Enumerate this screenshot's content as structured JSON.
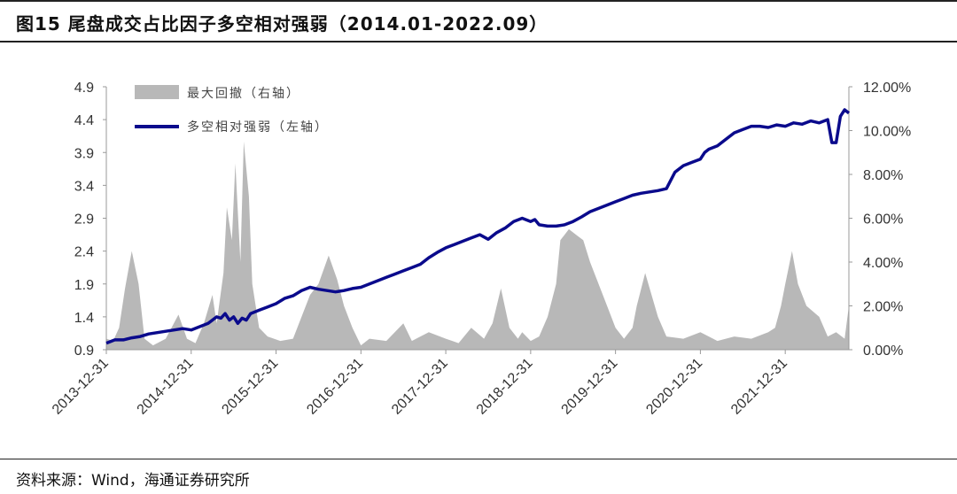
{
  "title": "图15 尾盘成交占比因子多空相对强弱（2014.01-2022.09）",
  "source": "资料来源：Wind，海通证券研究所",
  "chart_data": {
    "type": "line",
    "title": "图15 尾盘成交占比因子多空相对强弱（2014.01-2022.09）",
    "categories": [
      "2013-12-31",
      "2014-12-31",
      "2015-12-31",
      "2016-12-31",
      "2017-12-31",
      "2018-12-31",
      "2019-12-31",
      "2020-12-31",
      "2021-12-31"
    ],
    "left_axis": {
      "ticks": [
        "0.9",
        "1.4",
        "1.9",
        "2.4",
        "2.9",
        "3.4",
        "3.9",
        "4.4",
        "4.9"
      ],
      "ylim": [
        0.9,
        4.9
      ]
    },
    "right_axis": {
      "ticks": [
        "0.00%",
        "2.00%",
        "4.00%",
        "6.00%",
        "8.00%",
        "10.00%",
        "12.00%"
      ],
      "ylim": [
        0,
        12
      ]
    },
    "legend_position": "top-left",
    "series": [
      {
        "name": "最大回撤（右轴）",
        "kind": "area",
        "axis": "right",
        "color": "#b8b8b8",
        "x": [
          2014.0,
          2014.08,
          2014.15,
          2014.22,
          2014.3,
          2014.38,
          2014.45,
          2014.55,
          2014.7,
          2014.85,
          2014.95,
          2015.05,
          2015.15,
          2015.25,
          2015.3,
          2015.38,
          2015.42,
          2015.48,
          2015.52,
          2015.58,
          2015.62,
          2015.68,
          2015.72,
          2015.8,
          2015.9,
          2016.05,
          2016.2,
          2016.3,
          2016.4,
          2016.5,
          2016.62,
          2016.72,
          2016.8,
          2016.9,
          2017.0,
          2017.1,
          2017.3,
          2017.5,
          2017.6,
          2017.8,
          2018.0,
          2018.15,
          2018.3,
          2018.45,
          2018.55,
          2018.65,
          2018.75,
          2018.85,
          2018.9,
          2019.0,
          2019.1,
          2019.2,
          2019.3,
          2019.35,
          2019.45,
          2019.55,
          2019.62,
          2019.7,
          2019.8,
          2019.9,
          2020.0,
          2020.1,
          2020.2,
          2020.25,
          2020.35,
          2020.5,
          2020.6,
          2020.8,
          2021.0,
          2021.2,
          2021.4,
          2021.6,
          2021.8,
          2021.88,
          2021.95,
          2022.0,
          2022.08,
          2022.15,
          2022.25,
          2022.4,
          2022.5,
          2022.6,
          2022.7,
          2022.75
        ],
        "values": [
          0.5,
          0.4,
          1.0,
          2.8,
          4.5,
          3.0,
          0.5,
          0.2,
          0.5,
          1.6,
          0.5,
          0.3,
          1.2,
          2.5,
          1.2,
          3.5,
          6.5,
          5.0,
          8.5,
          4.0,
          9.5,
          7.0,
          3.0,
          1.0,
          0.6,
          0.4,
          0.5,
          1.5,
          2.5,
          3.0,
          4.3,
          3.2,
          2.0,
          1.0,
          0.2,
          0.5,
          0.4,
          1.2,
          0.4,
          0.8,
          0.5,
          0.3,
          1.0,
          0.5,
          1.2,
          2.8,
          1.0,
          0.5,
          0.8,
          0.4,
          0.6,
          1.5,
          3.0,
          5.0,
          5.5,
          5.2,
          5.0,
          4.0,
          3.0,
          2.0,
          1.0,
          0.5,
          1.0,
          2.0,
          3.5,
          1.5,
          0.6,
          0.5,
          0.8,
          0.4,
          0.6,
          0.5,
          0.8,
          1.0,
          2.0,
          3.0,
          4.5,
          3.0,
          2.0,
          1.5,
          0.6,
          0.8,
          0.5,
          2.0
        ]
      },
      {
        "name": "多空相对强弱（左轴）",
        "kind": "line",
        "axis": "left",
        "color": "#0a0a8c",
        "x": [
          2014.0,
          2014.1,
          2014.2,
          2014.3,
          2014.4,
          2014.5,
          2014.6,
          2014.7,
          2014.8,
          2014.9,
          2015.0,
          2015.1,
          2015.2,
          2015.3,
          2015.35,
          2015.4,
          2015.45,
          2015.5,
          2015.55,
          2015.6,
          2015.65,
          2015.7,
          2015.8,
          2015.9,
          2016.0,
          2016.1,
          2016.2,
          2016.3,
          2016.4,
          2016.5,
          2016.6,
          2016.7,
          2016.8,
          2016.9,
          2017.0,
          2017.1,
          2017.2,
          2017.3,
          2017.4,
          2017.5,
          2017.6,
          2017.7,
          2017.8,
          2017.9,
          2018.0,
          2018.1,
          2018.2,
          2018.3,
          2018.4,
          2018.5,
          2018.6,
          2018.7,
          2018.8,
          2018.9,
          2019.0,
          2019.05,
          2019.1,
          2019.2,
          2019.3,
          2019.4,
          2019.5,
          2019.6,
          2019.7,
          2019.8,
          2019.9,
          2020.0,
          2020.1,
          2020.2,
          2020.3,
          2020.4,
          2020.5,
          2020.6,
          2020.7,
          2020.8,
          2020.9,
          2021.0,
          2021.05,
          2021.1,
          2021.2,
          2021.3,
          2021.4,
          2021.5,
          2021.6,
          2021.7,
          2021.8,
          2021.9,
          2022.0,
          2022.1,
          2022.2,
          2022.3,
          2022.4,
          2022.5,
          2022.55,
          2022.6,
          2022.65,
          2022.7,
          2022.75
        ],
        "values": [
          1.0,
          1.05,
          1.05,
          1.08,
          1.1,
          1.14,
          1.16,
          1.18,
          1.2,
          1.22,
          1.2,
          1.25,
          1.3,
          1.4,
          1.38,
          1.45,
          1.35,
          1.4,
          1.3,
          1.38,
          1.35,
          1.45,
          1.5,
          1.55,
          1.6,
          1.68,
          1.72,
          1.8,
          1.85,
          1.82,
          1.8,
          1.78,
          1.8,
          1.83,
          1.85,
          1.9,
          1.95,
          2.0,
          2.05,
          2.1,
          2.15,
          2.2,
          2.3,
          2.38,
          2.45,
          2.5,
          2.55,
          2.6,
          2.65,
          2.58,
          2.68,
          2.75,
          2.85,
          2.9,
          2.85,
          2.88,
          2.8,
          2.78,
          2.78,
          2.8,
          2.85,
          2.92,
          3.0,
          3.05,
          3.1,
          3.15,
          3.2,
          3.25,
          3.28,
          3.3,
          3.32,
          3.35,
          3.6,
          3.7,
          3.75,
          3.8,
          3.9,
          3.95,
          4.0,
          4.1,
          4.2,
          4.25,
          4.3,
          4.3,
          4.28,
          4.32,
          4.3,
          4.35,
          4.33,
          4.38,
          4.35,
          4.4,
          4.05,
          4.05,
          4.45,
          4.55,
          4.5
        ]
      }
    ]
  }
}
